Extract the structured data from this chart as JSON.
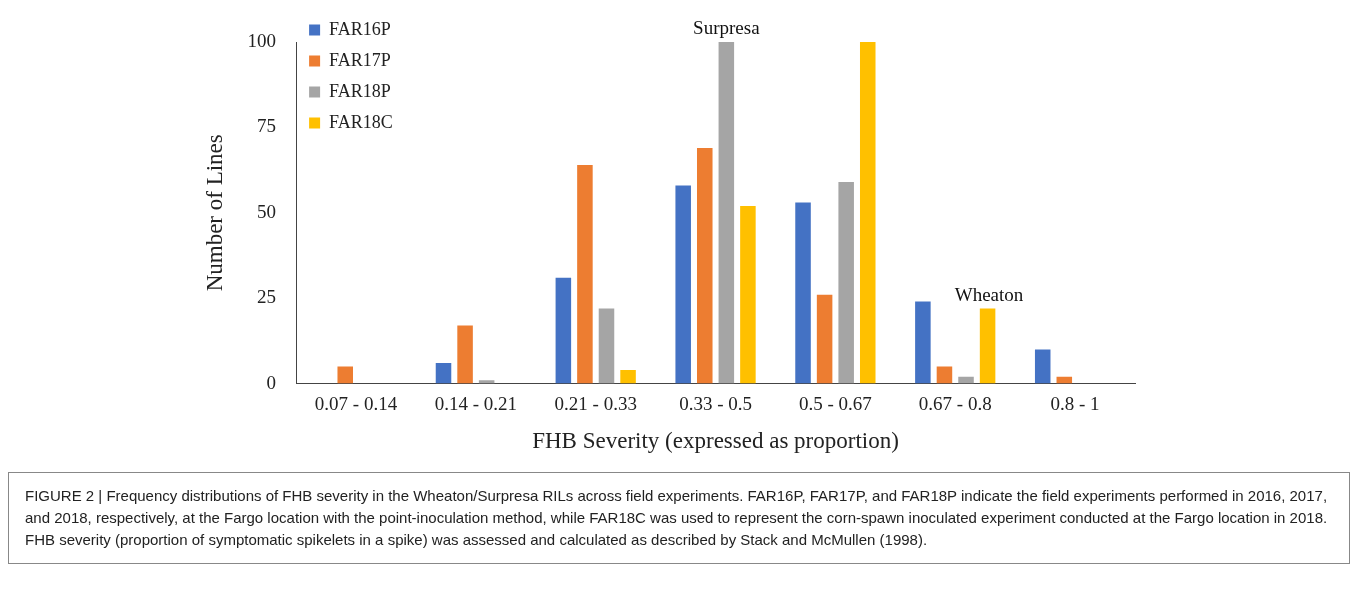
{
  "chart_data": {
    "type": "bar",
    "xlabel": "FHB Severity (expressed as proportion)",
    "ylabel": "Number of Lines",
    "categories": [
      "0.07 - 0.14",
      "0.14 - 0.21",
      "0.21 - 0.33",
      "0.33 - 0.5",
      "0.5 - 0.67",
      "0.67 - 0.8",
      "0.8 - 1"
    ],
    "series": [
      {
        "name": "FAR16P",
        "color": "#4472c4",
        "values": [
          0,
          6,
          31,
          58,
          53,
          24,
          10
        ]
      },
      {
        "name": "FAR17P",
        "color": "#ed7d31",
        "values": [
          5,
          17,
          64,
          69,
          26,
          5,
          2
        ]
      },
      {
        "name": "FAR18P",
        "color": "#a5a5a5",
        "values": [
          0,
          1,
          22,
          100,
          59,
          2,
          0
        ]
      },
      {
        "name": "FAR18C",
        "color": "#ffc000",
        "values": [
          0,
          0,
          4,
          52,
          100,
          22,
          0
        ]
      }
    ],
    "ylim": [
      0,
      100
    ],
    "yticks": [
      0,
      25,
      50,
      75,
      100
    ],
    "grid": false,
    "legend": "top left",
    "annotations": [
      {
        "text": "Surpresa",
        "x": "0.33 - 0.5",
        "y": 100
      },
      "Wheaton",
      "FIGURE 2 | Frequency distributions of FHB severity in the Wheaton/Surpresa RILs across field experiments. FAR16P, FAR17P, and FAR18P indicate the field experiments performed in 2016, 2017, and 2018, respectively, at the Fargo location with the point-inoculation method, while FAR18C was used to represent the corn-spawn inoculated experiment conducted at the Fargo location in 2018. FHB severity (proportion of symptomatic spikelets in a spike) was assessed and calculated as described by Stack and McMullen (1998)."
    ]
  }
}
